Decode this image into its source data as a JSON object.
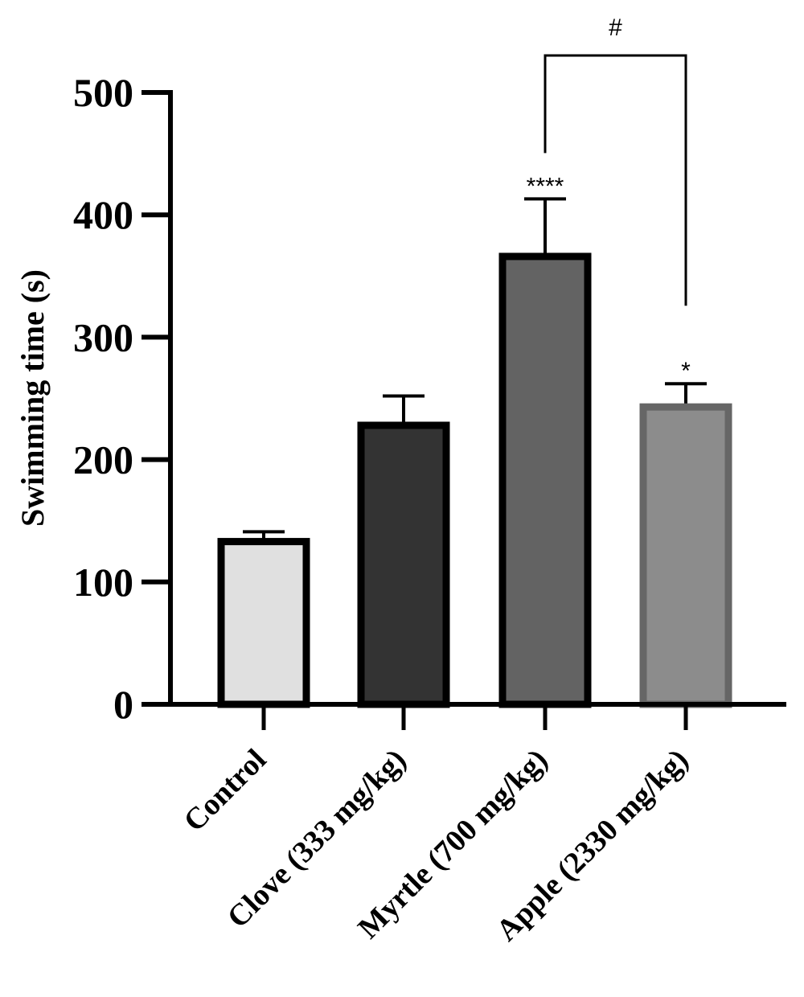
{
  "chart_data": {
    "type": "bar",
    "title": "",
    "xlabel": "",
    "ylabel": "Swimming time (s)",
    "ylim": [
      0,
      500
    ],
    "yticks": [
      0,
      100,
      200,
      300,
      400,
      500
    ],
    "grid": false,
    "categories": [
      "Control",
      "Clove (333 mg/kg)",
      "Myrtle (700 mg/kg)",
      "Apple (2330 mg/kg)"
    ],
    "values": [
      133,
      228,
      366,
      243
    ],
    "errors": [
      8,
      24,
      47,
      19
    ],
    "colors": [
      "#e0e0e0",
      "#333333",
      "#636363",
      "#8c8c8c"
    ],
    "edge_colors": [
      "#000000",
      "#000000",
      "#000000",
      "#666666"
    ],
    "significance": [
      "",
      "",
      "****",
      "*"
    ],
    "bracket": {
      "from": 2,
      "to": 3,
      "label": "#"
    }
  }
}
